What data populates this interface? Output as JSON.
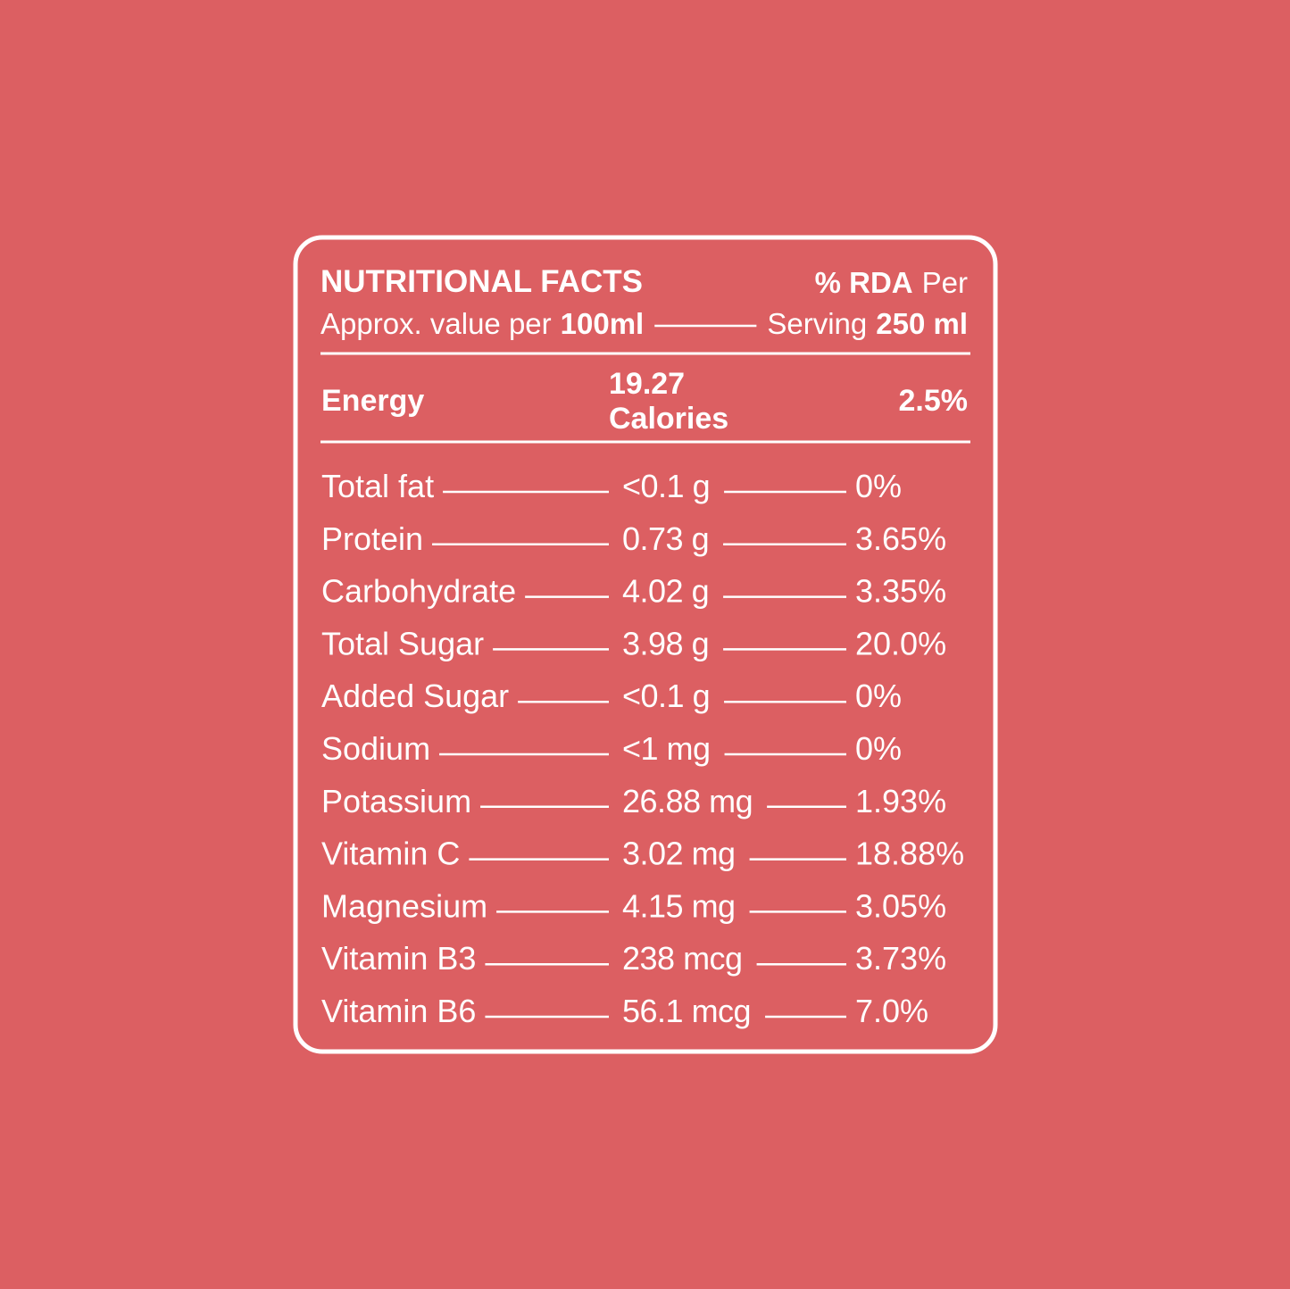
{
  "header": {
    "title": "NUTRITIONAL FACTS",
    "rda_bold": "% RDA",
    "rda_rest": "Per",
    "approx": "Approx. value per",
    "per_amount": "100ml",
    "serving": "Serving",
    "serving_amount": "250 ml"
  },
  "energy": {
    "name": "Energy",
    "amount": "19.27",
    "unit": "Calories",
    "rda": "2.5%"
  },
  "rows": [
    {
      "name": "Total fat",
      "value": "<0.1 g",
      "rda": "0%"
    },
    {
      "name": "Protein",
      "value": "0.73 g",
      "rda": "3.65%"
    },
    {
      "name": "Carbohydrate",
      "value": "4.02 g",
      "rda": "3.35%"
    },
    {
      "name": "Total Sugar",
      "value": "3.98 g",
      "rda": "20.0%"
    },
    {
      "name": "Added Sugar",
      "value": "<0.1 g",
      "rda": "0%"
    },
    {
      "name": "Sodium",
      "value": "<1 mg",
      "rda": "0%"
    },
    {
      "name": "Potassium",
      "value": "26.88 mg",
      "rda": "1.93%"
    },
    {
      "name": "Vitamin C",
      "value": "3.02 mg",
      "rda": "18.88%"
    },
    {
      "name": "Magnesium",
      "value": "4.15 mg",
      "rda": "3.05%"
    },
    {
      "name": "Vitamin B3",
      "value": "238 mcg",
      "rda": "3.73%"
    },
    {
      "name": "Vitamin B6",
      "value": "56.1 mcg",
      "rda": "7.0%"
    }
  ]
}
